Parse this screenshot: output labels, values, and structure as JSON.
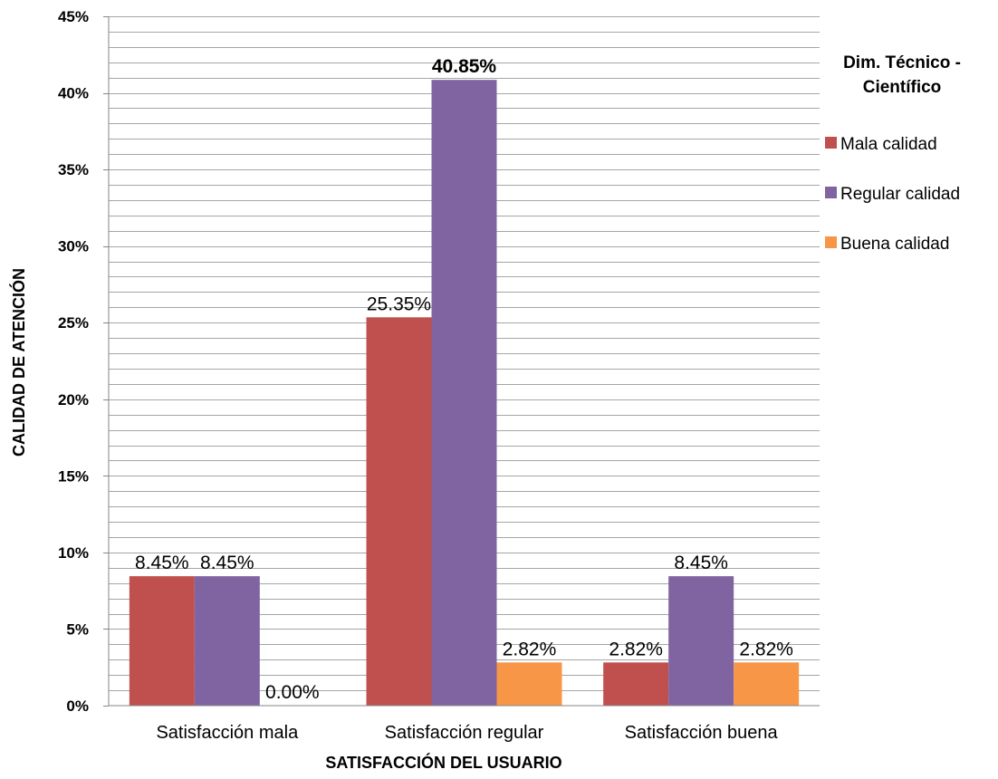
{
  "chart_data": {
    "type": "bar",
    "categories": [
      "Satisfacción mala",
      "Satisfacción regular",
      "Satisfacción buena"
    ],
    "series": [
      {
        "name": "Mala calidad",
        "values": [
          8.45,
          25.35,
          2.82
        ],
        "color": "#C0504D"
      },
      {
        "name": "Regular calidad",
        "values": [
          8.45,
          40.85,
          8.45
        ],
        "color": "#8064A2"
      },
      {
        "name": "Buena calidad",
        "values": [
          0.0,
          2.82,
          2.82
        ],
        "color": "#F79646"
      }
    ],
    "data_labels": [
      [
        "8.45%",
        "25.35%",
        "2.82%"
      ],
      [
        "8.45%",
        "40.85%",
        "8.45%"
      ],
      [
        "0.00%",
        "2.82%",
        "2.82%"
      ]
    ],
    "bold_label": {
      "series": 1,
      "category": 1
    },
    "xlabel": "SATISFACCIÓN DEL USUARIO",
    "ylabel": "CALIDAD DE ATENCIÓN",
    "ylim": [
      0,
      45
    ],
    "yticks": [
      0,
      5,
      10,
      15,
      20,
      25,
      30,
      35,
      40,
      45
    ],
    "ytick_labels": [
      "0%",
      "5%",
      "10%",
      "15%",
      "20%",
      "25%",
      "30%",
      "35%",
      "40%",
      "45%"
    ],
    "grid": true,
    "legend_title_lines": [
      "Dim. Técnico -",
      "Científico"
    ],
    "legend_position": "right"
  }
}
